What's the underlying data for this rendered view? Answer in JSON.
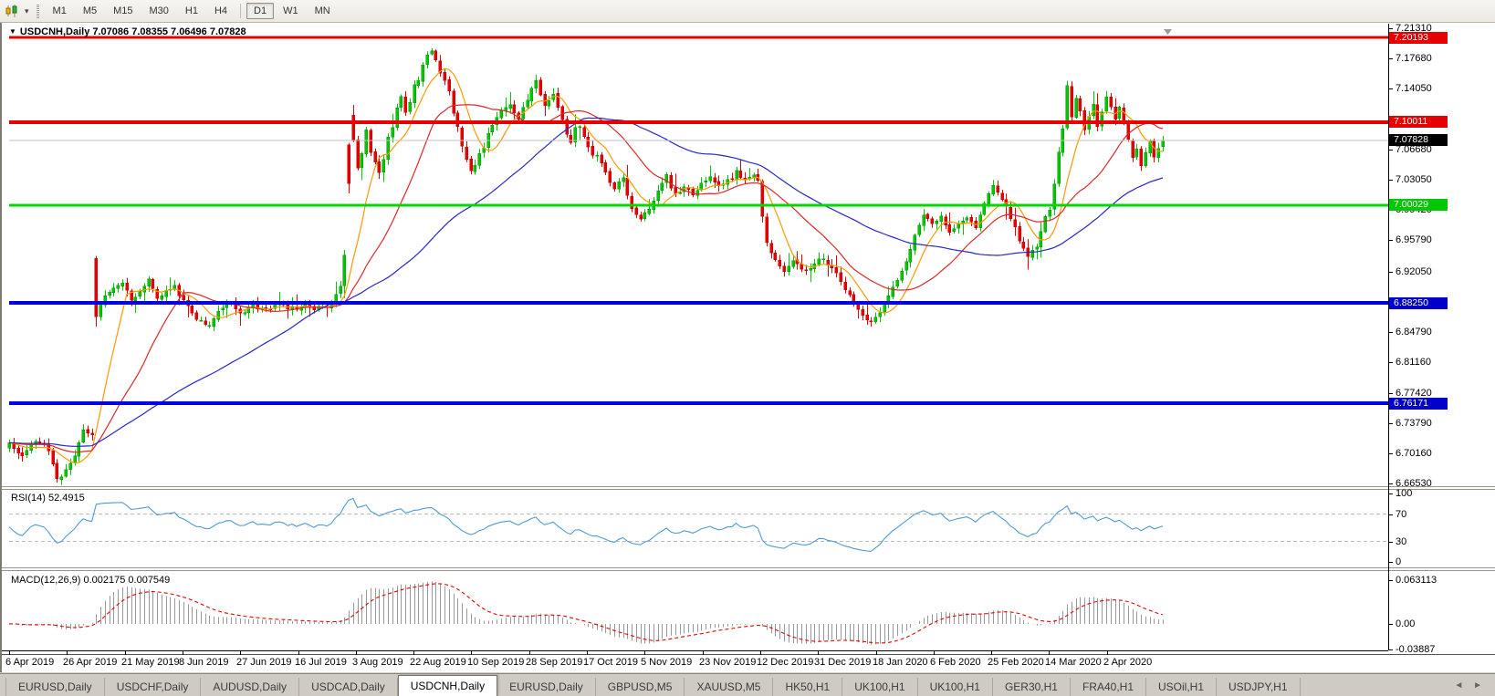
{
  "toolbar": {
    "chart_type_icon": "candlestick-chart-icon",
    "dropdown_glyph": "▾",
    "timeframe_groups": [
      [
        "M1",
        "M5",
        "M15",
        "M30",
        "H1",
        "H4"
      ],
      [
        "D1",
        "W1",
        "MN"
      ]
    ],
    "active_timeframe": "D1"
  },
  "chart": {
    "title_glyph": "▼",
    "title_text": "USDCNH,Daily  7.07086 7.08355 7.06496 7.07828",
    "price_axis_ticks": [
      "7.21310",
      "7.17680",
      "7.14050",
      "7.06680",
      "7.03050",
      "6.99420",
      "6.95790",
      "6.92050",
      "6.84790",
      "6.81160",
      "6.77420",
      "6.73790",
      "6.70160",
      "6.66530"
    ],
    "price_badges": [
      {
        "label": "7.20193",
        "value": 7.20193,
        "color": "#e60000"
      },
      {
        "label": "7.10011",
        "value": 7.10011,
        "color": "#e60000"
      },
      {
        "label": "7.07828",
        "value": 7.07828,
        "color": "#000000"
      },
      {
        "label": "7.00029",
        "value": 7.00029,
        "color": "#00c800"
      },
      {
        "label": "6.88250",
        "value": 6.8825,
        "color": "#0000cc"
      },
      {
        "label": "6.76171",
        "value": 6.76171,
        "color": "#0000cc"
      }
    ],
    "hlines": [
      {
        "value": 7.20193,
        "color": "#e60000",
        "thickness": 3
      },
      {
        "value": 7.10011,
        "color": "#e60000",
        "thickness": 4
      },
      {
        "value": 7.00029,
        "color": "#00d800",
        "thickness": 3
      },
      {
        "value": 6.8825,
        "color": "#0000e0",
        "thickness": 4
      },
      {
        "value": 6.76171,
        "color": "#0000e0",
        "thickness": 4
      }
    ],
    "current_price_line": {
      "value": 7.07828,
      "color": "#c0c0c0",
      "thickness": 1
    },
    "date_axis": [
      "6 Apr 2019",
      "26 Apr 2019",
      "21 May 2019",
      "8 Jun 2019",
      "27 Jun 2019",
      "16 Jul 2019",
      "3 Aug 2019",
      "22 Aug 2019",
      "10 Sep 2019",
      "28 Sep 2019",
      "17 Oct 2019",
      "5 Nov 2019",
      "23 Nov 2019",
      "12 Dec 2019",
      "31 Dec 2019",
      "18 Jan 2020",
      "6 Feb 2020",
      "25 Feb 2020",
      "14 Mar 2020",
      "2 Apr 2020"
    ]
  },
  "indicators": {
    "rsi": {
      "label": "RSI(14) 52.4915",
      "period": 14,
      "value": 52.4915,
      "color": "#4f9bd5",
      "levels": [
        {
          "label": "100",
          "value": 100,
          "dashed": false
        },
        {
          "label": "70",
          "value": 70,
          "dashed": true
        },
        {
          "label": "30",
          "value": 30,
          "dashed": true
        },
        {
          "label": "0",
          "value": 0,
          "dashed": false
        }
      ]
    },
    "macd": {
      "label": "MACD(12,26,9) 0.002175 0.007549",
      "params": [
        12,
        26,
        9
      ],
      "macd_value": 0.002175,
      "signal_value": 0.007549,
      "scale": [
        {
          "label": "0.063113",
          "value": 0.063113
        },
        {
          "label": "0.00",
          "value": 0
        },
        {
          "label": "-0.03887",
          "value": -0.03887
        }
      ]
    }
  },
  "chart_data": {
    "type": "candlestick",
    "symbol": "USDCNH",
    "timeframe": "Daily",
    "title": "USDCNH,Daily",
    "ohlc_current": {
      "open": 7.07086,
      "high": 7.08355,
      "low": 7.06496,
      "close": 7.07828
    },
    "y_range": [
      6.6653,
      7.2131
    ],
    "x_labels": [
      "6 Apr 2019",
      "26 Apr 2019",
      "21 May 2019",
      "8 Jun 2019",
      "27 Jun 2019",
      "16 Jul 2019",
      "3 Aug 2019",
      "22 Aug 2019",
      "10 Sep 2019",
      "28 Sep 2019",
      "17 Oct 2019",
      "5 Nov 2019",
      "23 Nov 2019",
      "12 Dec 2019",
      "31 Dec 2019",
      "18 Jan 2020",
      "6 Feb 2020",
      "25 Feb 2020",
      "14 Mar 2020",
      "2 Apr 2020"
    ],
    "support_resistance": [
      7.20193,
      7.10011,
      7.00029,
      6.8825,
      6.76171
    ],
    "moving_averages": [
      {
        "name": "fast",
        "period": 8,
        "color": "#ff9900"
      },
      {
        "name": "mid",
        "period": 21,
        "color": "#dc2828"
      },
      {
        "name": "slow",
        "period": 55,
        "color": "#2828c8"
      }
    ],
    "price_anchors": [
      [
        0,
        6.712
      ],
      [
        3,
        6.7
      ],
      [
        6,
        6.718
      ],
      [
        9,
        6.706
      ],
      [
        11,
        6.67
      ],
      [
        13,
        6.682
      ],
      [
        15,
        6.701
      ],
      [
        17,
        6.727
      ],
      [
        19,
        6.723
      ],
      [
        20,
        6.868
      ],
      [
        22,
        6.89
      ],
      [
        24,
        6.902
      ],
      [
        26,
        6.908
      ],
      [
        28,
        6.884
      ],
      [
        30,
        6.898
      ],
      [
        32,
        6.912
      ],
      [
        34,
        6.886
      ],
      [
        36,
        6.897
      ],
      [
        38,
        6.902
      ],
      [
        40,
        6.884
      ],
      [
        43,
        6.862
      ],
      [
        46,
        6.854
      ],
      [
        48,
        6.872
      ],
      [
        50,
        6.884
      ],
      [
        53,
        6.87
      ],
      [
        56,
        6.88
      ],
      [
        59,
        6.874
      ],
      [
        62,
        6.882
      ],
      [
        65,
        6.876
      ],
      [
        68,
        6.88
      ],
      [
        71,
        6.876
      ],
      [
        74,
        6.882
      ],
      [
        76,
        6.902
      ],
      [
        77,
        6.94
      ],
      [
        78,
        7.025
      ],
      [
        79,
        7.08
      ],
      [
        80,
        7.048
      ],
      [
        81,
        7.065
      ],
      [
        82,
        7.092
      ],
      [
        83,
        7.062
      ],
      [
        84,
        7.05
      ],
      [
        85,
        7.042
      ],
      [
        86,
        7.058
      ],
      [
        87,
        7.082
      ],
      [
        88,
        7.095
      ],
      [
        89,
        7.118
      ],
      [
        90,
        7.13
      ],
      [
        91,
        7.112
      ],
      [
        92,
        7.125
      ],
      [
        93,
        7.145
      ],
      [
        94,
        7.152
      ],
      [
        95,
        7.168
      ],
      [
        96,
        7.178
      ],
      [
        97,
        7.186
      ],
      [
        98,
        7.172
      ],
      [
        99,
        7.158
      ],
      [
        100,
        7.148
      ],
      [
        101,
        7.135
      ],
      [
        102,
        7.112
      ],
      [
        103,
        7.092
      ],
      [
        104,
        7.072
      ],
      [
        105,
        7.058
      ],
      [
        106,
        7.04
      ],
      [
        107,
        7.048
      ],
      [
        108,
        7.062
      ],
      [
        109,
        7.072
      ],
      [
        110,
        7.088
      ],
      [
        111,
        7.098
      ],
      [
        112,
        7.108
      ],
      [
        113,
        7.112
      ],
      [
        114,
        7.118
      ],
      [
        115,
        7.122
      ],
      [
        116,
        7.112
      ],
      [
        117,
        7.105
      ],
      [
        118,
        7.118
      ],
      [
        119,
        7.128
      ],
      [
        120,
        7.142
      ],
      [
        121,
        7.148
      ],
      [
        122,
        7.132
      ],
      [
        123,
        7.12
      ],
      [
        124,
        7.128
      ],
      [
        125,
        7.132
      ],
      [
        126,
        7.118
      ],
      [
        127,
        7.102
      ],
      [
        128,
        7.088
      ],
      [
        129,
        7.078
      ],
      [
        130,
        7.092
      ],
      [
        131,
        7.096
      ],
      [
        132,
        7.082
      ],
      [
        133,
        7.068
      ],
      [
        134,
        7.062
      ],
      [
        135,
        7.058
      ],
      [
        136,
        7.048
      ],
      [
        137,
        7.04
      ],
      [
        138,
        7.028
      ],
      [
        139,
        7.02
      ],
      [
        140,
        7.03
      ],
      [
        141,
        7.036
      ],
      [
        142,
        7.012
      ],
      [
        143,
        6.998
      ],
      [
        144,
        6.99
      ],
      [
        145,
        6.982
      ],
      [
        146,
        6.99
      ],
      [
        147,
        6.998
      ],
      [
        148,
        7.008
      ],
      [
        149,
        7.016
      ],
      [
        150,
        7.028
      ],
      [
        151,
        7.036
      ],
      [
        152,
        7.022
      ],
      [
        153,
        7.012
      ],
      [
        155,
        7.024
      ],
      [
        157,
        7.012
      ],
      [
        159,
        7.024
      ],
      [
        161,
        7.034
      ],
      [
        163,
        7.022
      ],
      [
        165,
        7.03
      ],
      [
        167,
        7.04
      ],
      [
        169,
        7.032
      ],
      [
        171,
        7.036
      ],
      [
        172,
        7.03
      ],
      [
        173,
        6.986
      ],
      [
        174,
        6.958
      ],
      [
        176,
        6.932
      ],
      [
        178,
        6.922
      ],
      [
        180,
        6.934
      ],
      [
        182,
        6.922
      ],
      [
        184,
        6.926
      ],
      [
        186,
        6.938
      ],
      [
        188,
        6.93
      ],
      [
        190,
        6.92
      ],
      [
        192,
        6.898
      ],
      [
        194,
        6.882
      ],
      [
        196,
        6.868
      ],
      [
        198,
        6.858
      ],
      [
        200,
        6.872
      ],
      [
        202,
        6.894
      ],
      [
        204,
        6.912
      ],
      [
        206,
        6.932
      ],
      [
        208,
        6.962
      ],
      [
        210,
        6.99
      ],
      [
        212,
        6.976
      ],
      [
        214,
        6.986
      ],
      [
        216,
        6.966
      ],
      [
        218,
        6.976
      ],
      [
        220,
        6.986
      ],
      [
        222,
        6.972
      ],
      [
        224,
        7.0
      ],
      [
        226,
        7.024
      ],
      [
        228,
        7.01
      ],
      [
        230,
        6.986
      ],
      [
        232,
        6.96
      ],
      [
        234,
        6.936
      ],
      [
        236,
        6.952
      ],
      [
        238,
        6.986
      ],
      [
        239,
        6.996
      ],
      [
        240,
        7.025
      ],
      [
        241,
        7.065
      ],
      [
        242,
        7.095
      ],
      [
        243,
        7.145
      ],
      [
        244,
        7.108
      ],
      [
        245,
        7.13
      ],
      [
        246,
        7.112
      ],
      [
        247,
        7.092
      ],
      [
        248,
        7.106
      ],
      [
        249,
        7.12
      ],
      [
        250,
        7.096
      ],
      [
        251,
        7.112
      ],
      [
        252,
        7.13
      ],
      [
        253,
        7.116
      ],
      [
        254,
        7.106
      ],
      [
        255,
        7.12
      ],
      [
        256,
        7.1
      ],
      [
        257,
        7.08
      ],
      [
        258,
        7.056
      ],
      [
        259,
        7.066
      ],
      [
        260,
        7.05
      ],
      [
        261,
        7.062
      ],
      [
        262,
        7.076
      ],
      [
        263,
        7.06
      ],
      [
        264,
        7.066
      ],
      [
        265,
        7.078
      ]
    ]
  },
  "colors": {
    "up": "#00c800",
    "up_stroke": "#009600",
    "down": "#e60000",
    "down_stroke": "#c80000",
    "histogram": "#8e8e8e",
    "signal": "#e60000",
    "rsi_level": "#bcbcbc",
    "axis": "#000000"
  },
  "tabs": {
    "items": [
      {
        "label": "EURUSD,Daily",
        "active": false
      },
      {
        "label": "USDCHF,Daily",
        "active": false
      },
      {
        "label": "AUDUSD,Daily",
        "active": false
      },
      {
        "label": "USDCAD,Daily",
        "active": false
      },
      {
        "label": "USDCNH,Daily",
        "active": true
      },
      {
        "label": "EURUSD,Daily",
        "active": false
      },
      {
        "label": "GBPUSD,M5",
        "active": false
      },
      {
        "label": "XAUUSD,M5",
        "active": false
      },
      {
        "label": "HK50,H1",
        "active": false
      },
      {
        "label": "UK100,H1",
        "active": false
      },
      {
        "label": "UK100,H1",
        "active": false
      },
      {
        "label": "GER30,H1",
        "active": false
      },
      {
        "label": "FRA40,H1",
        "active": false
      },
      {
        "label": "USOil,H1",
        "active": false
      },
      {
        "label": "USDJPY,H1",
        "active": false
      }
    ],
    "nav_left_glyph": "◄",
    "nav_right_glyph": "►"
  }
}
